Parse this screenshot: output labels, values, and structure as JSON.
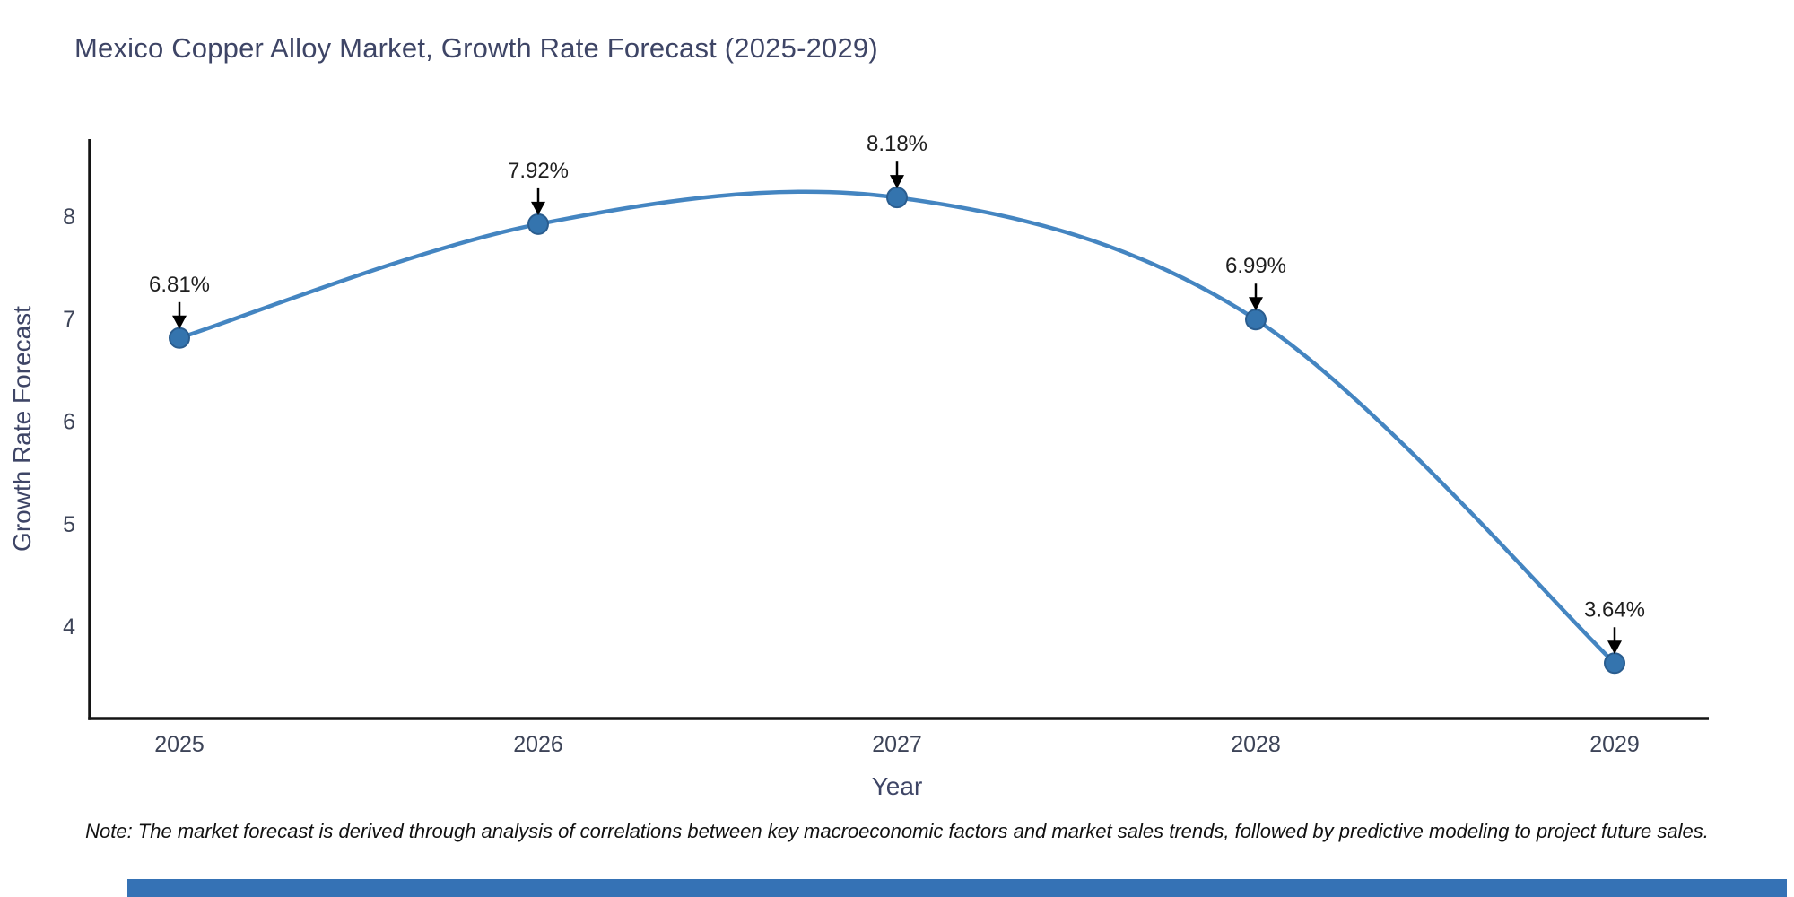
{
  "title": "Mexico Copper Alloy Market, Growth Rate Forecast (2025-2029)",
  "note": "Note: The market forecast is derived through analysis of correlations between key macroeconomic factors and market sales trends, followed by predictive modeling to project future sales.",
  "chart_data": {
    "type": "line",
    "x": [
      2025,
      2026,
      2027,
      2028,
      2029
    ],
    "series": [
      {
        "name": "Growth Rate Forecast",
        "values": [
          6.81,
          7.92,
          8.18,
          6.99,
          3.64
        ]
      }
    ],
    "point_labels": [
      "6.81%",
      "7.92%",
      "8.18%",
      "6.99%",
      "3.64%"
    ],
    "title": "Mexico Copper Alloy Market, Growth Rate Forecast (2025-2029)",
    "xlabel": "Year",
    "ylabel": "Growth Rate Forecast",
    "y_ticks": [
      4,
      5,
      6,
      7,
      8
    ],
    "ylim": [
      3.1,
      8.75
    ],
    "line_shape": "spline",
    "grid": false,
    "legend_position": "none",
    "annotation_style": "value labels with black down-arrows pointing at markers"
  },
  "colors": {
    "line": "#4485c1",
    "marker_fill": "#3474ae",
    "marker_edge": "#2a5d8f",
    "axis": "#141414",
    "annotation_text": "#1f1f1f",
    "heading_text": "#3e4566",
    "tick_text": "#3d4458",
    "footer_bar": "#3572b5"
  }
}
